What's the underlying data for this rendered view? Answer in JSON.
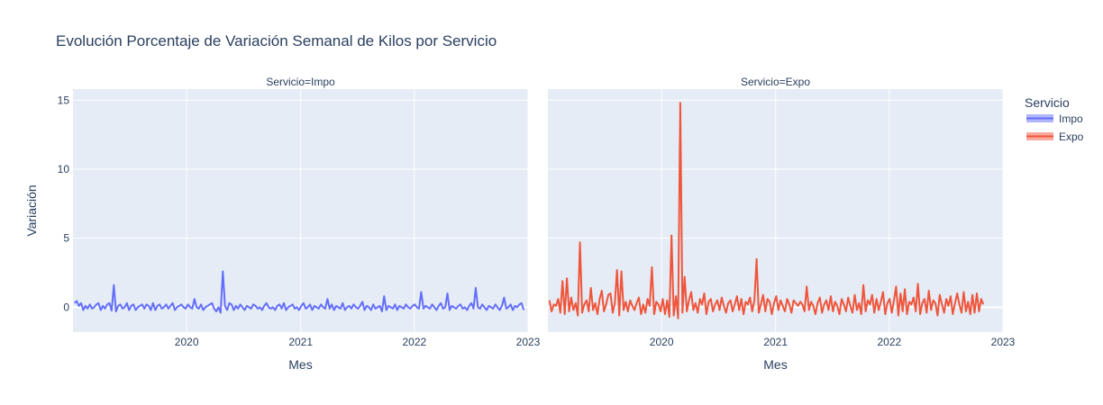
{
  "chart_data": {
    "type": "line",
    "title": "Evolución Porcentaje de Variación Semanal de Kilos por Servicio",
    "ylabel": "Variación",
    "xlabel": "Mes",
    "ylim": [
      -1.8,
      15.8
    ],
    "yticks": [
      0,
      5,
      10,
      15
    ],
    "xlim": [
      "2019-01-01",
      "2023-01-01"
    ],
    "xticks": [
      "2020",
      "2021",
      "2022",
      "2023"
    ],
    "legend": {
      "title": "Servicio",
      "placement": "right"
    },
    "grid": true,
    "series": [
      {
        "name": "Impo",
        "facet_label": "Servicio=Impo",
        "color": "#636efa",
        "x_start": "2019-01-06",
        "x_step_days": 7,
        "values": [
          0.3,
          0.45,
          0.1,
          0.3,
          -0.2,
          0.1,
          -0.1,
          0.2,
          -0.1,
          0.0,
          0.2,
          0.3,
          -0.2,
          0.1,
          -0.1,
          0.2,
          0.3,
          -0.25,
          1.6,
          -0.3,
          0.1,
          0.2,
          -0.1,
          0.0,
          0.3,
          -0.2,
          0.1,
          0.2,
          -0.2,
          0.0,
          0.1,
          0.2,
          -0.1,
          0.2,
          0.1,
          -0.2,
          0.3,
          -0.2,
          0.1,
          0.2,
          -0.1,
          0.0,
          0.2,
          -0.1,
          0.1,
          0.3,
          -0.2,
          0.0,
          0.1,
          0.2,
          0.0,
          -0.1,
          0.2,
          0.0,
          -0.1,
          0.6,
          0.0,
          -0.1,
          0.2,
          -0.2,
          0.0,
          0.1,
          0.2,
          0.3,
          -0.1,
          -0.3,
          0.0,
          -0.4,
          2.6,
          0.1,
          -0.2,
          0.3,
          0.2,
          -0.2,
          0.1,
          -0.1,
          0.2,
          0.0,
          -0.2,
          0.1,
          0.0,
          -0.1,
          0.2,
          0.1,
          -0.1,
          0.0,
          -0.2,
          0.1,
          0.3,
          0.0,
          -0.1,
          0.0,
          -0.2,
          0.1,
          0.2,
          -0.1,
          0.3,
          -0.2,
          0.0,
          0.1,
          0.2,
          -0.1,
          0.0,
          -0.2,
          0.1,
          0.3,
          -0.1,
          0.0,
          0.2,
          -0.2,
          0.1,
          0.0,
          -0.1,
          0.2,
          0.0,
          -0.1,
          0.6,
          -0.1,
          0.2,
          -0.2,
          0.1,
          0.0,
          -0.1,
          0.3,
          -0.2,
          0.0,
          0.1,
          -0.1,
          0.2,
          0.0,
          -0.1,
          0.1,
          0.4,
          -0.2,
          0.1,
          0.0,
          -0.2,
          0.2,
          -0.1,
          0.0,
          0.1,
          -0.3,
          0.8,
          -0.2,
          0.1,
          0.0,
          -0.1,
          0.2,
          -0.2,
          0.1,
          0.0,
          -0.1,
          0.2,
          0.0,
          -0.1,
          0.1,
          0.2,
          0.0,
          -0.1,
          1.1,
          -0.1,
          0.1,
          0.0,
          -0.1,
          0.2,
          0.0,
          -0.2,
          0.1,
          0.3,
          -0.1,
          0.0,
          1.0,
          -0.2,
          0.1,
          0.0,
          -0.1,
          0.1,
          0.2,
          -0.1,
          0.0,
          -0.2,
          0.1,
          0.3,
          -0.1,
          1.4,
          0.0,
          -0.1,
          0.2,
          0.0,
          -0.2,
          0.1,
          0.0,
          -0.1,
          0.2,
          0.0,
          -0.2,
          0.1,
          0.7,
          -0.1,
          0.0,
          0.2,
          -0.2,
          0.1,
          0.0,
          0.2,
          0.3,
          -0.2
        ]
      },
      {
        "name": "Expo",
        "facet_label": "Servicio=Expo",
        "color": "#ef553b",
        "x_start": "2019-01-06",
        "x_step_days": 7,
        "values": [
          0.5,
          -0.3,
          0.2,
          0.1,
          0.6,
          -0.4,
          1.9,
          -0.5,
          2.1,
          -0.3,
          0.7,
          -0.2,
          0.3,
          -0.6,
          4.7,
          -0.4,
          0.2,
          0.5,
          -0.3,
          1.4,
          -0.2,
          0.3,
          -0.5,
          0.6,
          1.2,
          -0.3,
          0.2,
          0.9,
          1.0,
          -0.4,
          0.3,
          2.7,
          -0.6,
          2.6,
          -0.2,
          0.4,
          -0.3,
          0.5,
          0.1,
          -0.2,
          0.3,
          0.7,
          -0.5,
          0.2,
          -0.4,
          0.6,
          0.1,
          2.9,
          -0.5,
          0.4,
          0.2,
          -0.3,
          0.6,
          -0.5,
          0.5,
          -0.7,
          5.2,
          -0.6,
          0.8,
          -0.8,
          14.8,
          -0.4,
          2.2,
          -0.3,
          0.5,
          1.1,
          -0.2,
          0.3,
          -0.4,
          0.6,
          0.2,
          1.0,
          -0.5,
          0.4,
          0.6,
          -0.3,
          0.2,
          0.5,
          -0.2,
          0.7,
          0.1,
          -0.4,
          0.3,
          0.5,
          -0.3,
          0.2,
          0.8,
          -0.2,
          0.6,
          -0.5,
          0.4,
          0.2,
          0.7,
          -0.3,
          0.5,
          3.5,
          -0.4,
          0.2,
          0.9,
          -0.3,
          0.6,
          0.4,
          -0.5,
          0.3,
          0.8,
          -0.2,
          0.5,
          0.1,
          -0.3,
          0.6,
          0.2,
          -0.4,
          0.5,
          0.3,
          0.1,
          0.4,
          0.2,
          -0.3,
          1.5,
          -0.2,
          0.4,
          0.1,
          -0.5,
          0.3,
          0.7,
          -0.4,
          0.2,
          0.5,
          -0.2,
          0.8,
          -0.3,
          0.4,
          0.1,
          -0.5,
          0.6,
          0.2,
          -0.3,
          0.7,
          0.1,
          -0.4,
          0.9,
          -0.2,
          0.3,
          -0.5,
          1.6,
          -0.3,
          0.5,
          0.2,
          0.9,
          -0.4,
          0.6,
          -0.2,
          0.4,
          1.1,
          -0.5,
          0.3,
          0.6,
          -0.4,
          0.5,
          1.5,
          -0.6,
          1.0,
          -0.3,
          1.3,
          -0.5,
          0.4,
          0.2,
          0.7,
          -0.3,
          1.7,
          -0.5,
          0.3,
          0.6,
          -0.4,
          1.2,
          -0.2,
          0.5,
          0.3,
          -0.6,
          0.9,
          0.2,
          -0.4,
          0.6,
          0.1,
          0.8,
          -0.5,
          0.3,
          1.0,
          0.2,
          -0.4,
          1.1,
          -0.3,
          0.4,
          -0.5,
          0.9,
          -0.4,
          1.0,
          -0.3,
          0.6,
          0.2
        ]
      }
    ]
  }
}
